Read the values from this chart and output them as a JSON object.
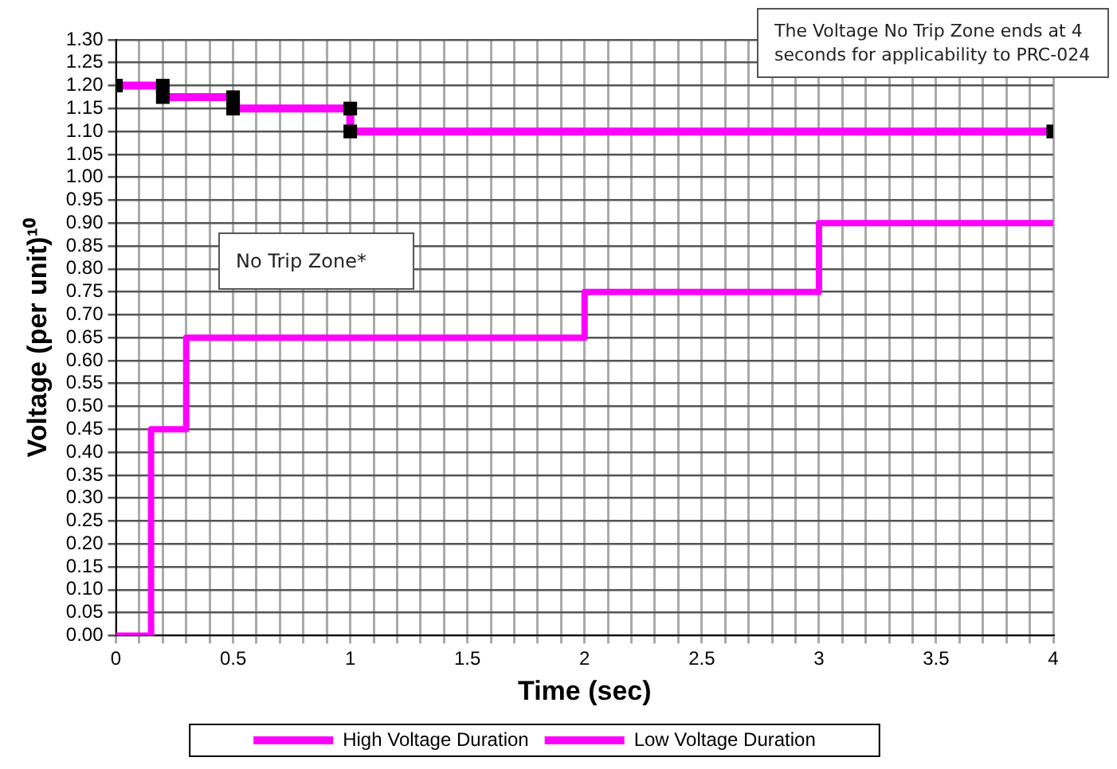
{
  "chart_data": {
    "type": "line",
    "xlabel": "Time (sec)",
    "ylabel": "Voltage (per unit)¹⁰",
    "xlim": [
      0,
      4
    ],
    "xticks": [
      0,
      {
        "value": 0.1,
        "label": null
      },
      {
        "value": 0.2,
        "label": null
      },
      {
        "value": 0.3,
        "label": null
      },
      {
        "value": 0.4,
        "label": null
      },
      0.5,
      {
        "value": 0.6,
        "label": null
      },
      {
        "value": 0.7,
        "label": null
      },
      {
        "value": 0.8,
        "label": null
      },
      {
        "value": 0.9,
        "label": null
      },
      1,
      {
        "value": 1.1,
        "label": null
      },
      {
        "value": 1.2,
        "label": null
      },
      {
        "value": 1.3,
        "label": null
      },
      {
        "value": 1.4,
        "label": null
      },
      1.5,
      {
        "value": 1.6,
        "label": null
      },
      {
        "value": 1.7,
        "label": null
      },
      {
        "value": 1.8,
        "label": null
      },
      {
        "value": 1.9,
        "label": null
      },
      2,
      {
        "value": 2.1,
        "label": null
      },
      {
        "value": 2.2,
        "label": null
      },
      {
        "value": 2.3,
        "label": null
      },
      {
        "value": 2.4,
        "label": null
      },
      2.5,
      {
        "value": 2.6,
        "label": null
      },
      {
        "value": 2.7,
        "label": null
      },
      {
        "value": 2.8,
        "label": null
      },
      {
        "value": 2.9,
        "label": null
      },
      3,
      {
        "value": 3.1,
        "label": null
      },
      {
        "value": 3.2,
        "label": null
      },
      {
        "value": 3.3,
        "label": null
      },
      {
        "value": 3.4,
        "label": null
      },
      3.5,
      {
        "value": 3.6,
        "label": null
      },
      {
        "value": 3.7,
        "label": null
      },
      {
        "value": 3.8,
        "label": null
      },
      {
        "value": 3.9,
        "label": null
      },
      4
    ],
    "ylim": [
      0,
      1.3
    ],
    "yticks": [
      {
        "value": 0,
        "label": "0.00"
      },
      0.05,
      {
        "value": 0.1,
        "label": "0.10"
      },
      0.15,
      {
        "value": 0.2,
        "label": "0.20"
      },
      0.25,
      {
        "value": 0.3,
        "label": "0.30"
      },
      0.35,
      {
        "value": 0.4,
        "label": "0.40"
      },
      0.45,
      {
        "value": 0.5,
        "label": "0.50"
      },
      0.55,
      {
        "value": 0.6,
        "label": "0.60"
      },
      0.65,
      {
        "value": 0.7,
        "label": "0.70"
      },
      0.75,
      {
        "value": 0.8,
        "label": "0.80"
      },
      0.85,
      {
        "value": 0.9,
        "label": "0.90"
      },
      0.95,
      {
        "value": 1,
        "label": "1.00"
      },
      1.05,
      {
        "value": 1.1,
        "label": "1.10"
      },
      1.15,
      {
        "value": 1.2,
        "label": "1.20"
      },
      1.25,
      {
        "value": 1.3,
        "label": "1.30"
      }
    ],
    "grid": true,
    "legend": "bottom",
    "line_style": "solid",
    "series": [
      {
        "name": "High Voltage Duration",
        "color": "#ff00ff",
        "marker": "square",
        "x": [
          0,
          0.2,
          0.2,
          0.5,
          0.5,
          1,
          1,
          4
        ],
        "values": [
          1.2,
          1.2,
          1.175,
          1.175,
          1.15,
          1.15,
          1.1,
          1.1
        ]
      },
      {
        "name": "Low Voltage Duration",
        "color": "#ff00ff",
        "marker": "none",
        "x": [
          0,
          0.15,
          0.15,
          0.3,
          0.3,
          2,
          2,
          3,
          3,
          4
        ],
        "values": [
          0,
          0,
          0.45,
          0.45,
          0.65,
          0.65,
          0.75,
          0.75,
          0.9,
          0.9
        ]
      }
    ],
    "annotations": [
      "No Trip Zone*",
      "The Voltage No Trip Zone ends at 4 seconds for applicability to PRC-024"
    ]
  }
}
